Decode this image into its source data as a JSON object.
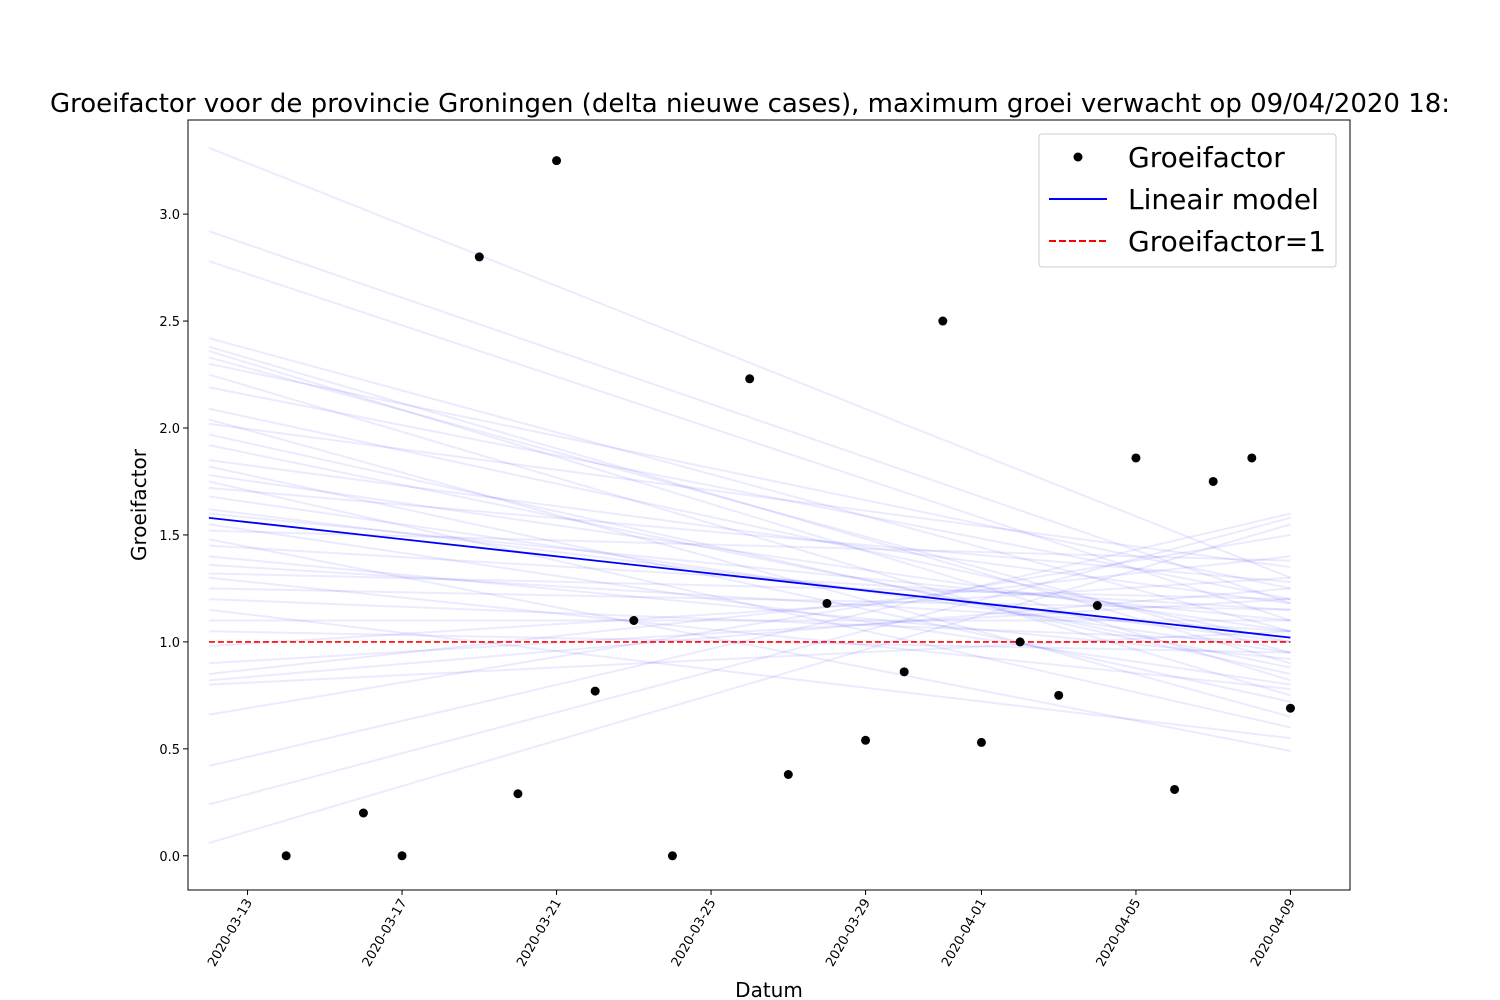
{
  "chart_data": {
    "type": "scatter",
    "title": "Groeifactor voor de provincie Groningen (delta nieuwe cases), maximum groei verwacht op 09/04/2020 18:",
    "xlabel": "Datum",
    "ylabel": "Groeifactor",
    "xlim": [
      "2020-03-11T11:00",
      "2020-04-10T13:00"
    ],
    "ylim": [
      -0.16,
      3.44
    ],
    "x_ticks": [
      "2020-03-13",
      "2020-03-17",
      "2020-03-21",
      "2020-03-25",
      "2020-03-29",
      "2020-04-01",
      "2020-04-05",
      "2020-04-09"
    ],
    "y_ticks": [
      "0.0",
      "0.5",
      "1.0",
      "1.5",
      "2.0",
      "2.5",
      "3.0"
    ],
    "legend_position": "top-right",
    "grid": false,
    "legend": [
      "Groeifactor",
      "Lineair model",
      "Groeifactor=1"
    ],
    "colors": {
      "points": "#000000",
      "model": "#0000ff",
      "reference": "#ff0000",
      "samples": "#0000ff"
    },
    "series": [
      {
        "name": "Groeifactor",
        "kind": "points",
        "x": [
          "2020-03-14",
          "2020-03-16",
          "2020-03-17",
          "2020-03-19",
          "2020-03-20",
          "2020-03-21",
          "2020-03-22",
          "2020-03-23",
          "2020-03-24",
          "2020-03-26",
          "2020-03-27",
          "2020-03-28",
          "2020-03-29",
          "2020-03-30",
          "2020-03-31",
          "2020-04-01",
          "2020-04-02",
          "2020-04-03",
          "2020-04-04",
          "2020-04-05",
          "2020-04-06",
          "2020-04-07",
          "2020-04-08",
          "2020-04-09"
        ],
        "y": [
          0.0,
          0.2,
          0.0,
          2.8,
          0.29,
          3.25,
          0.77,
          1.1,
          0.0,
          2.23,
          0.38,
          1.18,
          0.54,
          0.86,
          2.5,
          0.53,
          1.0,
          0.75,
          1.17,
          1.86,
          0.31,
          1.75,
          1.86,
          0.69
        ]
      },
      {
        "name": "Lineair model",
        "kind": "line",
        "x": [
          "2020-03-12",
          "2020-04-09"
        ],
        "y": [
          1.58,
          1.02
        ]
      },
      {
        "name": "Groeifactor=1",
        "kind": "dashed-line",
        "x": [
          "2020-03-12",
          "2020-04-09"
        ],
        "y": [
          1.0,
          1.0
        ]
      },
      {
        "kind": "sample-lines",
        "x": [
          "2020-03-12",
          "2020-04-09"
        ],
        "lines": [
          [
            3.31,
            1.3
          ],
          [
            2.92,
            1.18
          ],
          [
            2.78,
            1.1
          ],
          [
            2.42,
            1.05
          ],
          [
            2.38,
            0.9
          ],
          [
            2.36,
            0.82
          ],
          [
            2.33,
            0.95
          ],
          [
            2.3,
            1.25
          ],
          [
            2.25,
            0.75
          ],
          [
            2.19,
            1.2
          ],
          [
            2.09,
            1.0
          ],
          [
            2.04,
            0.65
          ],
          [
            2.02,
            1.35
          ],
          [
            1.97,
            0.85
          ],
          [
            1.85,
            1.18
          ],
          [
            1.82,
            0.72
          ],
          [
            1.78,
            1.05
          ],
          [
            1.75,
            0.6
          ],
          [
            1.72,
            1.28
          ],
          [
            1.68,
            0.95
          ],
          [
            1.6,
            1.1
          ],
          [
            1.55,
            0.8
          ],
          [
            1.52,
            1.38
          ],
          [
            1.45,
            1.15
          ],
          [
            1.4,
            0.92
          ],
          [
            1.36,
            1.05
          ],
          [
            1.32,
            1.2
          ],
          [
            1.3,
            0.78
          ],
          [
            1.25,
            1.15
          ],
          [
            1.2,
            1.0
          ],
          [
            1.1,
            1.1
          ],
          [
            1.05,
            0.95
          ],
          [
            0.98,
            1.3
          ],
          [
            0.9,
            1.2
          ],
          [
            0.85,
            1.4
          ],
          [
            0.82,
            1.25
          ],
          [
            0.66,
            1.5
          ],
          [
            0.42,
            1.6
          ],
          [
            0.24,
            1.58
          ],
          [
            0.06,
            1.55
          ],
          [
            1.15,
            0.55
          ],
          [
            1.48,
            0.49
          ],
          [
            0.8,
            1.05
          ],
          [
            1.62,
            1.0
          ],
          [
            1.92,
            0.88
          ]
        ]
      }
    ]
  }
}
